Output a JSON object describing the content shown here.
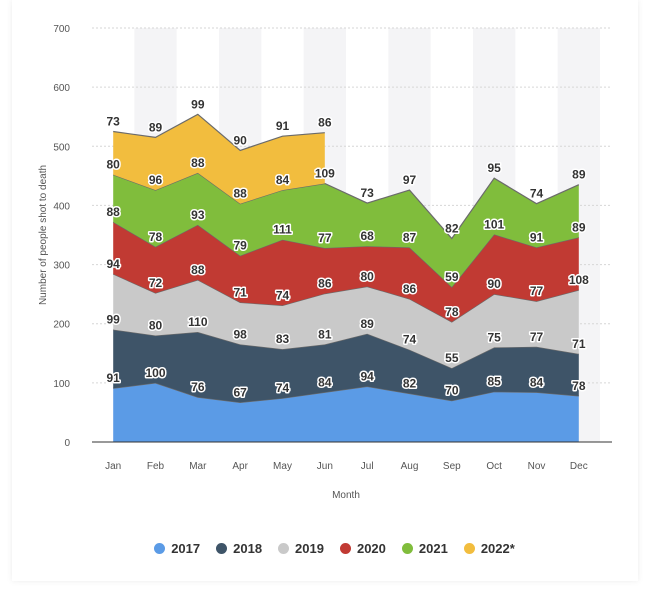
{
  "chart_data": {
    "type": "area",
    "stacked": true,
    "categories": [
      "Jan",
      "Feb",
      "Mar",
      "Apr",
      "May",
      "Jun",
      "Jul",
      "Aug",
      "Sep",
      "Oct",
      "Nov",
      "Dec"
    ],
    "xlabel": "Month",
    "ylabel": "Number of people shot to death",
    "ylim": [
      0,
      700
    ],
    "yticks": [
      0,
      100,
      200,
      300,
      400,
      500,
      600,
      700
    ],
    "grid": true,
    "legend_position": "bottom",
    "series": [
      {
        "name": "2017",
        "color": "#5b9be6",
        "values": [
          91,
          100,
          76,
          67,
          74,
          84,
          94,
          82,
          70,
          85,
          84,
          78
        ]
      },
      {
        "name": "2018",
        "color": "#3e5468",
        "values": [
          99,
          80,
          110,
          98,
          83,
          81,
          89,
          74,
          55,
          75,
          77,
          71
        ]
      },
      {
        "name": "2019",
        "color": "#c9c9c9",
        "values": [
          94,
          72,
          88,
          71,
          74,
          86,
          80,
          86,
          78,
          90,
          77,
          108
        ]
      },
      {
        "name": "2020",
        "color": "#c13a33",
        "values": [
          88,
          78,
          93,
          79,
          111,
          77,
          68,
          87,
          59,
          101,
          91,
          89
        ]
      },
      {
        "name": "2021",
        "color": "#80bd3c",
        "values": [
          80,
          96,
          88,
          88,
          84,
          109,
          73,
          97,
          82,
          95,
          74,
          89
        ]
      },
      {
        "name": "2022*",
        "color": "#f2bd3e",
        "values": [
          73,
          89,
          99,
          90,
          91,
          86,
          null,
          null,
          null,
          null,
          null,
          null
        ]
      }
    ]
  }
}
